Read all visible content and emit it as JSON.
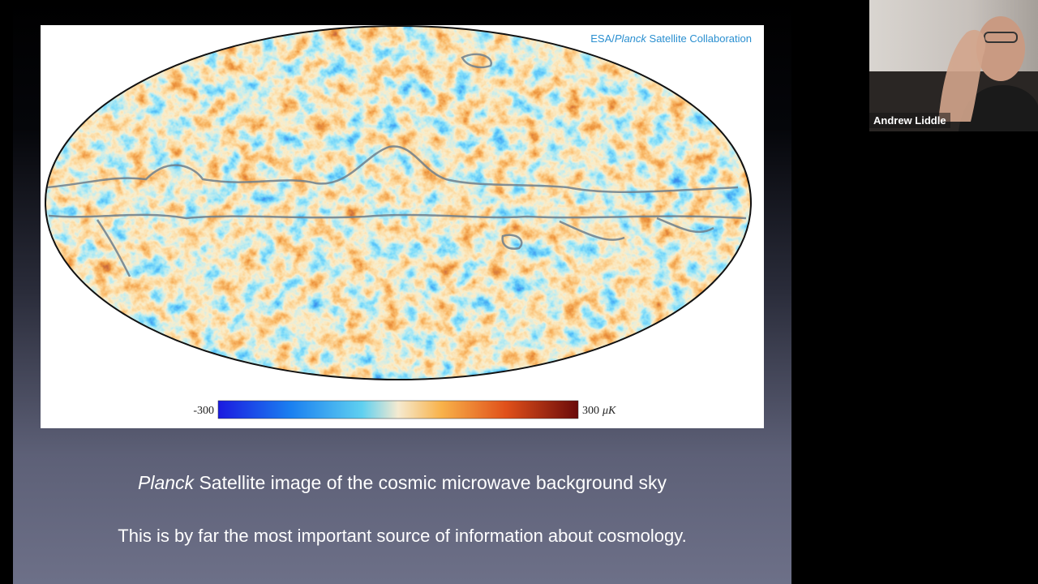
{
  "slide": {
    "credit": {
      "prefix": "ESA/",
      "italic": "Planck",
      "suffix": " Satellite Collaboration"
    },
    "colorbar": {
      "min_label": "-300",
      "max_label": "300",
      "unit": "μK"
    },
    "caption": {
      "italic": "Planck",
      "rest": " Satellite image of the cosmic microwave background sky"
    },
    "note": "This is by far the most important source of information about cosmology."
  },
  "video": {
    "participant_name": "Andrew Liddle"
  }
}
